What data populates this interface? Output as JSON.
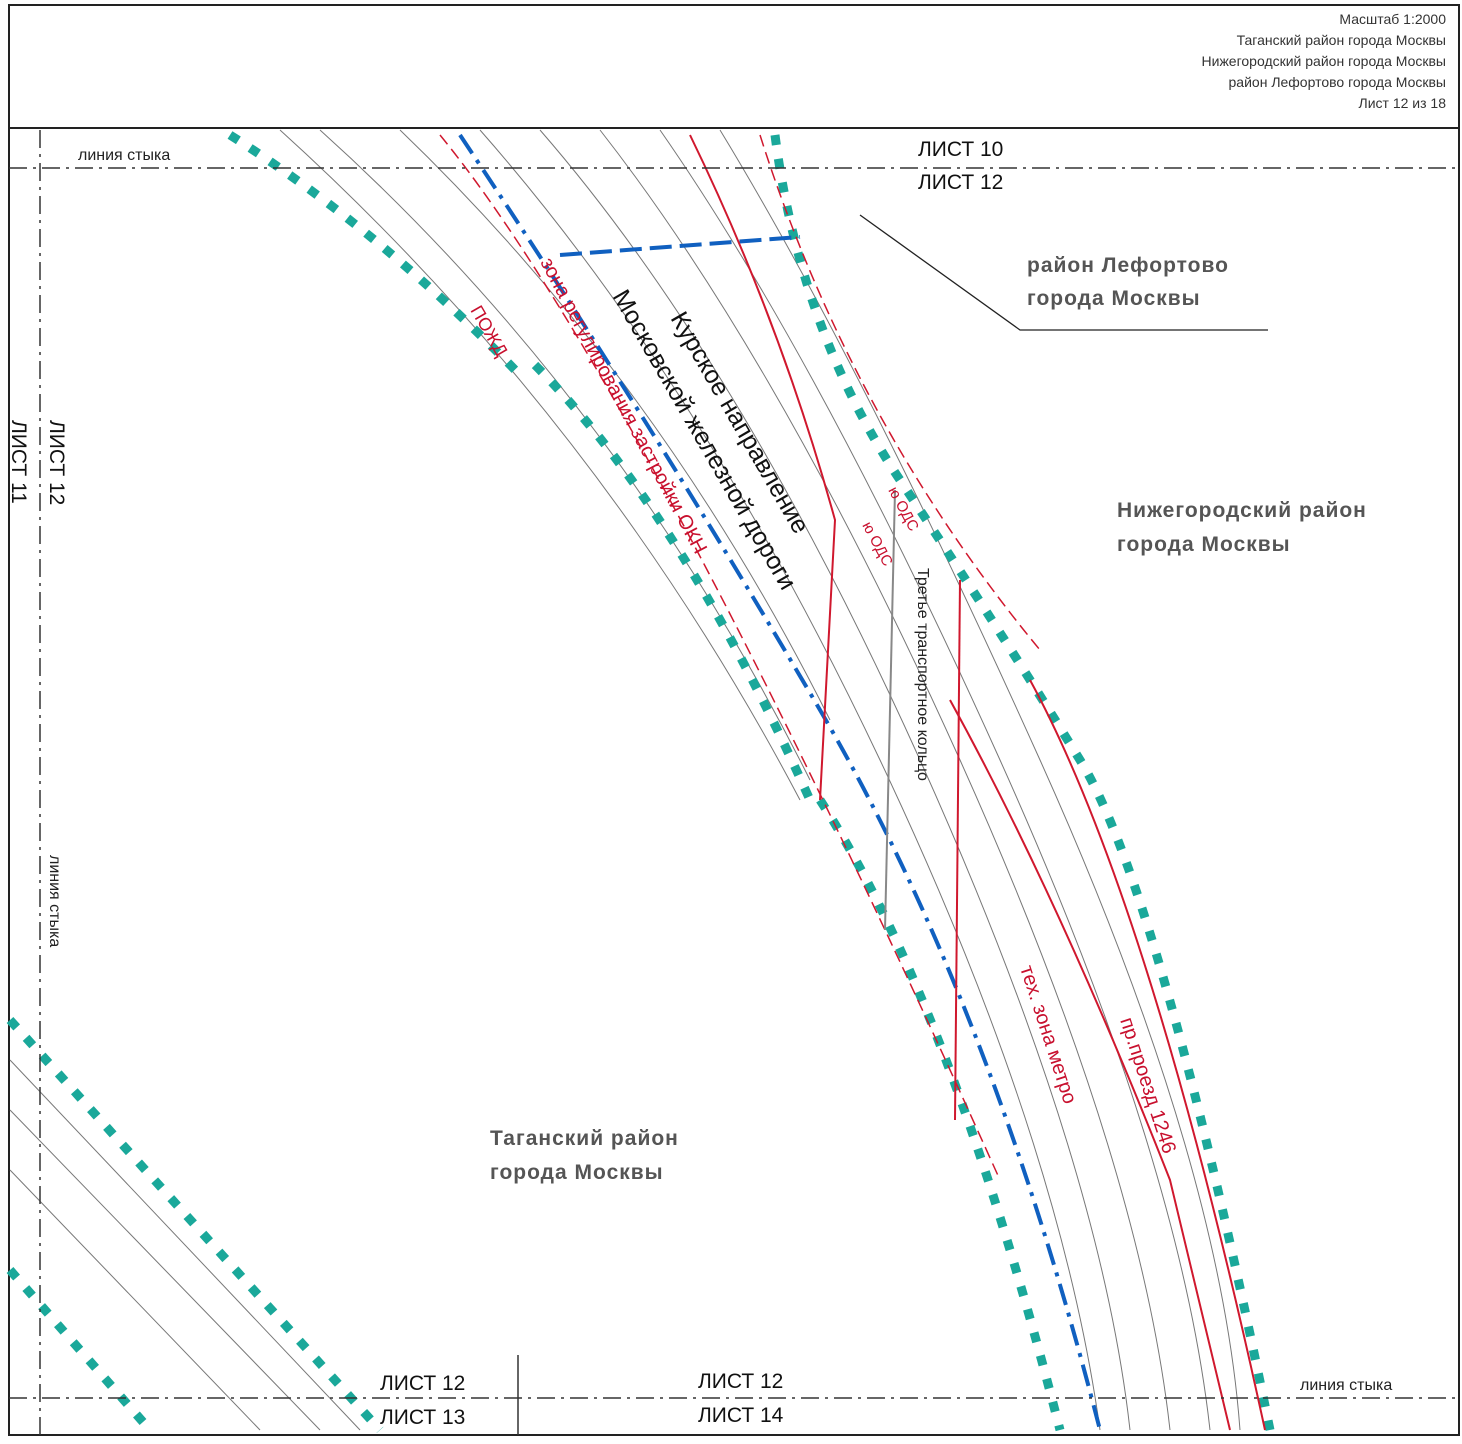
{
  "header": {
    "scale": "Масштаб 1:2000",
    "districts": [
      "Таганский район города Москвы",
      "Нижегородский район города Москвы",
      "район Лефортово города Москвы"
    ],
    "sheet": "Лист 12 из 18"
  },
  "map": {
    "junction_line": "линия стыка",
    "sheets": {
      "top_above": "ЛИСТ 10",
      "top_below": "ЛИСТ 12",
      "left_right": "ЛИСТ 12",
      "left_left": "ЛИСТ 11",
      "bottom_left_above": "ЛИСТ 12",
      "bottom_left_below": "ЛИСТ 13",
      "bottom_right_above": "ЛИСТ 12",
      "bottom_right_below": "ЛИСТ 14"
    },
    "districts": {
      "lefortovo": [
        "район Лефортово",
        "города Москвы"
      ],
      "nizhegorodsky": [
        "Нижегородский район",
        "города Москвы"
      ],
      "tagansky": [
        "Таганский район",
        "города Москвы"
      ]
    },
    "railway": [
      "Курское направление",
      "Московской железной дороги"
    ],
    "zone": "зона регулирования застройки ОКН",
    "pozhd": "ПОЖД",
    "ttk": "Третье транспортное кольцо",
    "metro": "тех. зона метро",
    "passage": "пр.проезд 1246",
    "ods": "ю ОДС"
  }
}
